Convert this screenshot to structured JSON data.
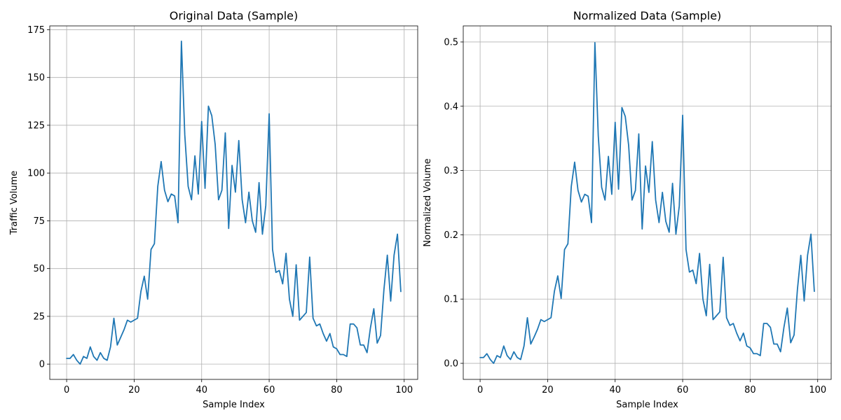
{
  "chart_data": [
    {
      "type": "line",
      "title": "Original Data (Sample)",
      "xlabel": "Sample Index",
      "ylabel": "Traffic Volume",
      "xlim": [
        -5,
        104
      ],
      "ylim": [
        -8,
        177
      ],
      "xticks": [
        0,
        20,
        40,
        60,
        80,
        100
      ],
      "yticks": [
        0,
        25,
        50,
        75,
        100,
        125,
        150,
        175
      ],
      "grid": true,
      "series": [
        {
          "color": "#1f77b4",
          "x": [
            0,
            1,
            2,
            3,
            4,
            5,
            6,
            7,
            8,
            9,
            10,
            11,
            12,
            13,
            14,
            15,
            16,
            17,
            18,
            19,
            20,
            21,
            22,
            23,
            24,
            25,
            26,
            27,
            28,
            29,
            30,
            31,
            32,
            33,
            34,
            35,
            36,
            37,
            38,
            39,
            40,
            41,
            42,
            43,
            44,
            45,
            46,
            47,
            48,
            49,
            50,
            51,
            52,
            53,
            54,
            55,
            56,
            57,
            58,
            59,
            60,
            61,
            62,
            63,
            64,
            65,
            66,
            67,
            68,
            69,
            70,
            71,
            72,
            73,
            74,
            75,
            76,
            77,
            78,
            79,
            80,
            81,
            82,
            83,
            84,
            85,
            86,
            87,
            88,
            89,
            90,
            91,
            92,
            93,
            94,
            95,
            96,
            97,
            98,
            99
          ],
          "y": [
            3,
            3,
            5,
            2,
            0,
            4,
            3,
            9,
            4,
            2,
            6,
            3,
            2,
            9,
            24,
            10,
            14,
            18,
            23,
            22,
            23,
            24,
            38,
            46,
            34,
            60,
            63,
            93,
            106,
            91,
            85,
            89,
            88,
            74,
            169,
            120,
            93,
            86,
            109,
            89,
            127,
            92,
            135,
            130,
            115,
            86,
            91,
            121,
            71,
            104,
            90,
            117,
            86,
            74,
            90,
            75,
            69,
            95,
            68,
            83,
            131,
            60,
            48,
            49,
            42,
            58,
            34,
            25,
            52,
            23,
            25,
            27,
            56,
            24,
            20,
            21,
            16,
            12,
            16,
            9,
            8,
            5,
            5,
            4,
            21,
            21,
            19,
            10,
            10,
            6,
            19,
            29,
            11,
            15,
            39,
            57,
            33,
            57,
            68,
            38
          ]
        }
      ]
    },
    {
      "type": "line",
      "title": "Normalized Data (Sample)",
      "xlabel": "Sample Index",
      "ylabel": "Normalized Volume",
      "xlim": [
        -5,
        104
      ],
      "ylim": [
        -0.025,
        0.525
      ],
      "xticks": [
        0,
        20,
        40,
        60,
        80,
        100
      ],
      "yticks": [
        0.0,
        0.1,
        0.2,
        0.3,
        0.4,
        0.5
      ],
      "grid": true,
      "series": [
        {
          "color": "#1f77b4",
          "x": [
            0,
            1,
            2,
            3,
            4,
            5,
            6,
            7,
            8,
            9,
            10,
            11,
            12,
            13,
            14,
            15,
            16,
            17,
            18,
            19,
            20,
            21,
            22,
            23,
            24,
            25,
            26,
            27,
            28,
            29,
            30,
            31,
            32,
            33,
            34,
            35,
            36,
            37,
            38,
            39,
            40,
            41,
            42,
            43,
            44,
            45,
            46,
            47,
            48,
            49,
            50,
            51,
            52,
            53,
            54,
            55,
            56,
            57,
            58,
            59,
            60,
            61,
            62,
            63,
            64,
            65,
            66,
            67,
            68,
            69,
            70,
            71,
            72,
            73,
            74,
            75,
            76,
            77,
            78,
            79,
            80,
            81,
            82,
            83,
            84,
            85,
            86,
            87,
            88,
            89,
            90,
            91,
            92,
            93,
            94,
            95,
            96,
            97,
            98,
            99
          ],
          "y": [
            0.009,
            0.009,
            0.015,
            0.006,
            0.0,
            0.012,
            0.009,
            0.027,
            0.012,
            0.006,
            0.018,
            0.009,
            0.006,
            0.027,
            0.071,
            0.03,
            0.041,
            0.053,
            0.068,
            0.065,
            0.068,
            0.071,
            0.112,
            0.136,
            0.101,
            0.177,
            0.186,
            0.275,
            0.313,
            0.269,
            0.251,
            0.263,
            0.26,
            0.219,
            0.499,
            0.354,
            0.274,
            0.254,
            0.322,
            0.263,
            0.375,
            0.271,
            0.398,
            0.384,
            0.339,
            0.254,
            0.269,
            0.357,
            0.209,
            0.307,
            0.266,
            0.345,
            0.254,
            0.219,
            0.266,
            0.221,
            0.204,
            0.28,
            0.201,
            0.245,
            0.386,
            0.177,
            0.142,
            0.145,
            0.124,
            0.171,
            0.1,
            0.074,
            0.154,
            0.068,
            0.074,
            0.08,
            0.165,
            0.071,
            0.059,
            0.062,
            0.047,
            0.035,
            0.047,
            0.027,
            0.024,
            0.015,
            0.015,
            0.012,
            0.062,
            0.062,
            0.056,
            0.03,
            0.03,
            0.018,
            0.056,
            0.086,
            0.032,
            0.044,
            0.115,
            0.168,
            0.097,
            0.168,
            0.201,
            0.112
          ]
        }
      ]
    }
  ]
}
